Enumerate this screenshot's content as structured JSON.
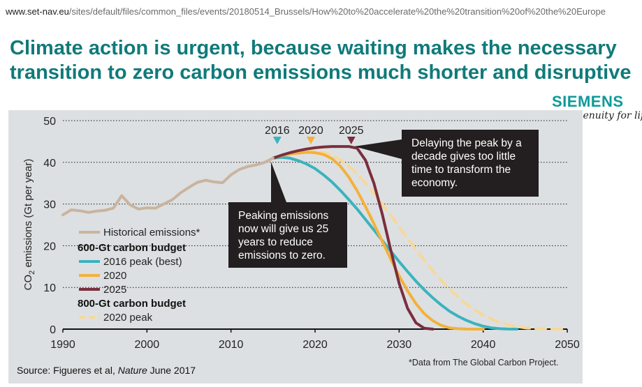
{
  "url": {
    "host": "www.set-nav.eu",
    "path": "/sites/default/files/common_files/events/20180514_Brussels/How%20to%20accelerate%20the%20transition%20of%20the%20Europe"
  },
  "headline": "Climate action is urgent, because waiting makes the necessary transition to zero carbon emissions much shorter and disruptive",
  "brand": {
    "name": "SIEMENS",
    "tagline": "Ingenuity for life"
  },
  "callouts": {
    "left": "Peaking emissions now will give us 25 years to reduce emissions to zero.",
    "right": "Delaying the peak by a decade gives too little time to transform the economy."
  },
  "source_prefix": "Source: Figueres et al, ",
  "source_journal": "Nature",
  "source_suffix": " June 2017",
  "data_note": "*Data from The Global Carbon Project.",
  "chart_data": {
    "type": "line",
    "ylabel": "CO2 emissions (Gt per year)",
    "ylabel_main": "CO",
    "ylabel_sub": "2",
    "ylabel_rest": " emissions (Gt per year)",
    "xlim": [
      1990,
      2050
    ],
    "ylim": [
      0,
      50
    ],
    "x_ticks": [
      1990,
      2000,
      2010,
      2020,
      2030,
      2040,
      2050
    ],
    "y_ticks": [
      0,
      10,
      20,
      30,
      40,
      50
    ],
    "grid": "horizontal dotted",
    "legend_position": "bottom-left",
    "legend": {
      "historical": "Historical emissions*",
      "group1": "600-Gt carbon budget",
      "group2": "800-Gt carbon budget"
    },
    "peak_markers": [
      {
        "label": "2016",
        "x": 2015.5,
        "color": "#3bb3be"
      },
      {
        "label": "2020",
        "x": 2019.5,
        "color": "#f3b13b"
      },
      {
        "label": "2025",
        "x": 2024.3,
        "color": "#7b2e3e"
      }
    ],
    "series": [
      {
        "name": "Historical emissions*",
        "color": "#c9b49e",
        "dash": false,
        "x": [
          1990,
          1991,
          1992,
          1993,
          1994,
          1995,
          1996,
          1997,
          1998,
          1999,
          2000,
          2001,
          2002,
          2003,
          2004,
          2005,
          2006,
          2007,
          2008,
          2009,
          2010,
          2011,
          2012,
          2013,
          2014,
          2015
        ],
        "y": [
          27.4,
          28.6,
          28.4,
          28.0,
          28.3,
          28.5,
          29.0,
          32.0,
          29.8,
          28.8,
          29.1,
          29.0,
          30.0,
          31.0,
          32.7,
          34.0,
          35.2,
          35.7,
          35.3,
          35.1,
          37.0,
          38.3,
          39.0,
          39.4,
          40.0,
          41.0
        ]
      },
      {
        "name": "2016 peak (best)",
        "color": "#3bb3be",
        "dash": false,
        "x": [
          2015,
          2016,
          2017,
          2018,
          2019,
          2020,
          2021,
          2022,
          2023,
          2024,
          2025,
          2026,
          2027,
          2028,
          2029,
          2030,
          2031,
          2032,
          2033,
          2034,
          2035,
          2036,
          2037,
          2038,
          2039,
          2040,
          2041,
          2042,
          2043,
          2044
        ],
        "y": [
          41,
          41.2,
          41.0,
          40.4,
          39.6,
          38.5,
          37.0,
          35.3,
          33.3,
          31.1,
          28.8,
          26.3,
          23.8,
          21.2,
          18.7,
          16.2,
          13.8,
          11.5,
          9.4,
          7.5,
          5.8,
          4.3,
          3.1,
          2.1,
          1.3,
          0.7,
          0.3,
          0.1,
          0.02,
          0
        ]
      },
      {
        "name": "2020",
        "color": "#f3b13b",
        "dash": false,
        "x": [
          2015,
          2016,
          2017,
          2018,
          2019,
          2020,
          2021,
          2022,
          2023,
          2024,
          2025,
          2026,
          2027,
          2028,
          2029,
          2030,
          2031,
          2032,
          2033,
          2034,
          2035,
          2036,
          2037,
          2038,
          2039,
          2040
        ],
        "y": [
          41,
          41.6,
          42.0,
          42.2,
          42.4,
          42.3,
          41.9,
          40.9,
          39.1,
          36.5,
          33.2,
          29.4,
          25.3,
          21.0,
          16.8,
          12.8,
          9.2,
          6.1,
          3.7,
          2.0,
          0.9,
          0.3,
          0.1,
          0.02,
          0,
          0
        ]
      },
      {
        "name": "2025",
        "color": "#7b2e3e",
        "dash": false,
        "x": [
          2015,
          2016,
          2017,
          2018,
          2019,
          2020,
          2021,
          2022,
          2023,
          2024,
          2025,
          2026,
          2027,
          2028,
          2029,
          2030,
          2031,
          2032,
          2033,
          2034
        ],
        "y": [
          41,
          41.7,
          42.3,
          42.8,
          43.2,
          43.5,
          43.7,
          43.8,
          43.8,
          43.8,
          43.4,
          40.5,
          35.0,
          27.5,
          19.0,
          11.0,
          5.0,
          1.5,
          0.2,
          0
        ]
      },
      {
        "name": "2020 peak",
        "color": "#f6d89a",
        "dash": true,
        "x": [
          2015,
          2016,
          2017,
          2018,
          2019,
          2020,
          2021,
          2022,
          2023,
          2024,
          2025,
          2026,
          2027,
          2028,
          2029,
          2030,
          2031,
          2032,
          2033,
          2034,
          2035,
          2036,
          2037,
          2038,
          2039,
          2040,
          2041,
          2042,
          2043,
          2044,
          2045,
          2046,
          2047,
          2048,
          2049,
          2050
        ],
        "y": [
          41,
          41.7,
          42.2,
          42.6,
          42.7,
          42.7,
          42.4,
          41.7,
          40.6,
          39.1,
          37.2,
          35.0,
          32.6,
          30.0,
          27.3,
          24.5,
          21.8,
          19.1,
          16.5,
          14.0,
          11.7,
          9.6,
          7.7,
          6.0,
          4.6,
          3.4,
          2.4,
          1.6,
          1.0,
          0.6,
          0.3,
          0.15,
          0.06,
          0.02,
          0,
          0
        ]
      }
    ],
    "legend_items": [
      {
        "label": "Historical emissions*",
        "color": "#c9b49e",
        "dash": false,
        "group": ""
      },
      {
        "label": "600-Gt carbon budget",
        "header": true
      },
      {
        "label": "2016 peak (best)",
        "color": "#3bb3be",
        "dash": false
      },
      {
        "label": "2020",
        "color": "#f3b13b",
        "dash": false
      },
      {
        "label": "2025",
        "color": "#7b2e3e",
        "dash": false
      },
      {
        "label": "800-Gt carbon budget",
        "header": true
      },
      {
        "label": "2020 peak",
        "color": "#f6d89a",
        "dash": true
      }
    ]
  }
}
